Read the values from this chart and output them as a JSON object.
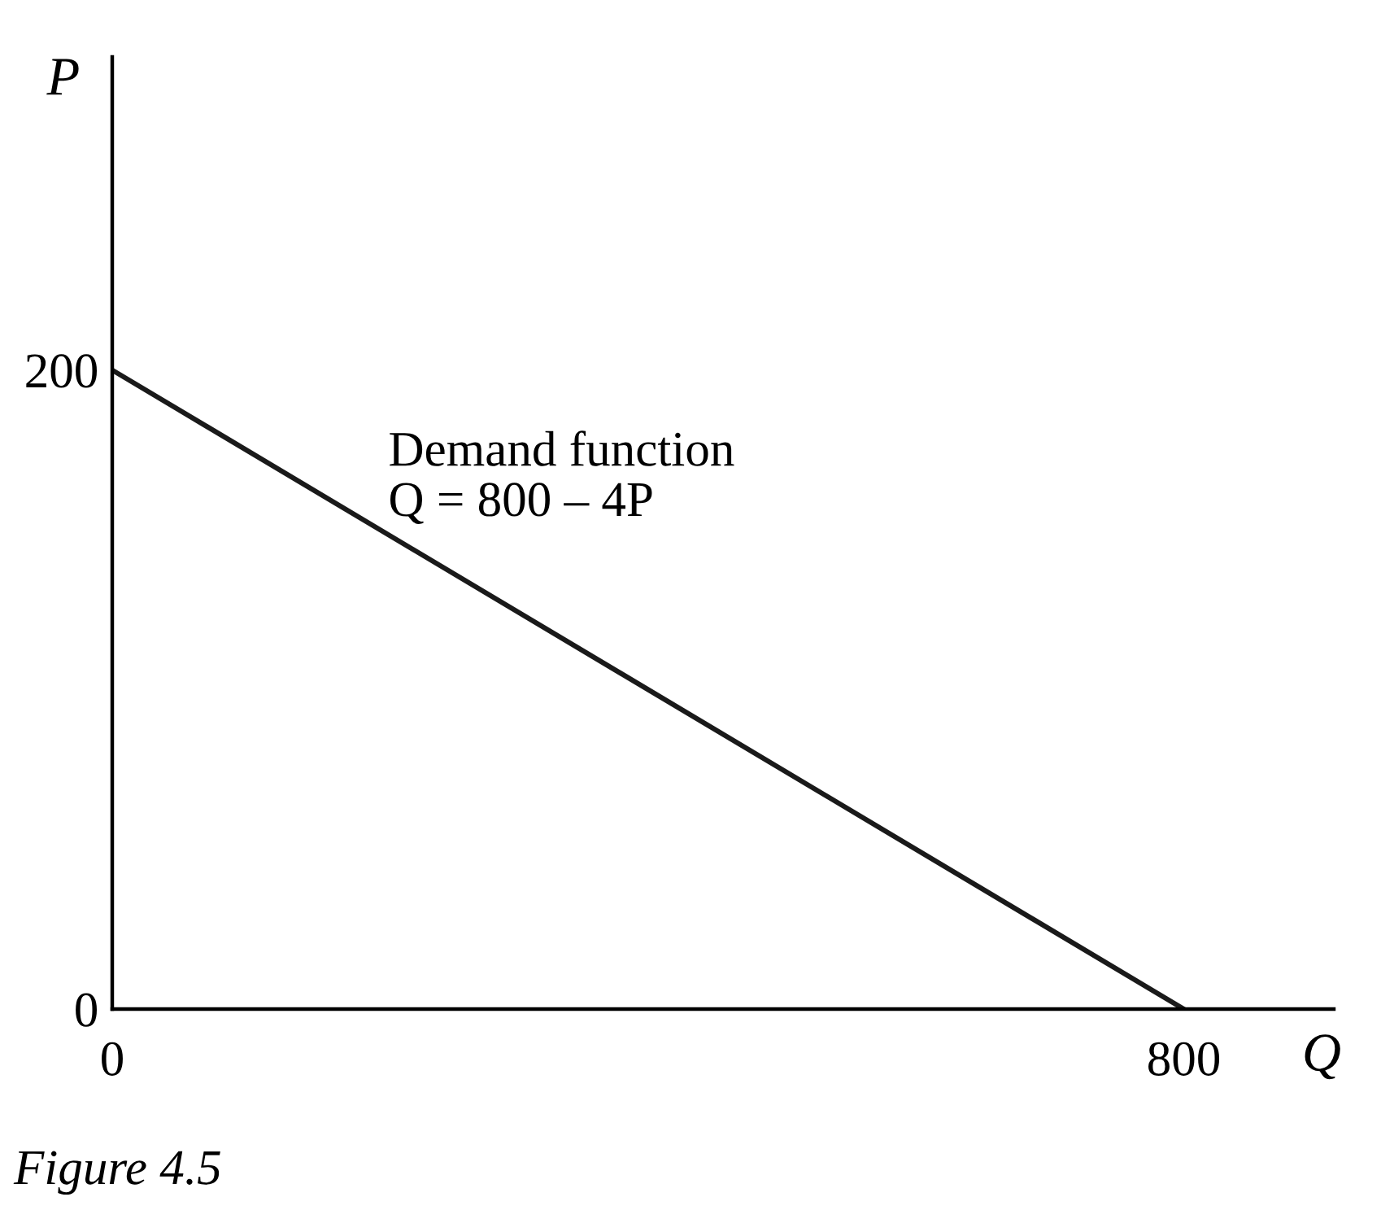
{
  "chart_data": {
    "type": "line",
    "xlabel": "Q",
    "ylabel": "P",
    "x": [
      0,
      800
    ],
    "series": [
      {
        "color": "#1a1a1a",
        "values": [
          200,
          0
        ]
      }
    ],
    "xlim": [
      0,
      912
    ],
    "ylim": [
      0,
      298
    ],
    "xticks": [
      0,
      800
    ],
    "yticks": [
      0,
      200
    ],
    "grid": false,
    "marker": "none",
    "line_style": "solid",
    "annotations": [
      "Demand function\nQ = 800 – 4P",
      "Figure 4.5"
    ]
  }
}
